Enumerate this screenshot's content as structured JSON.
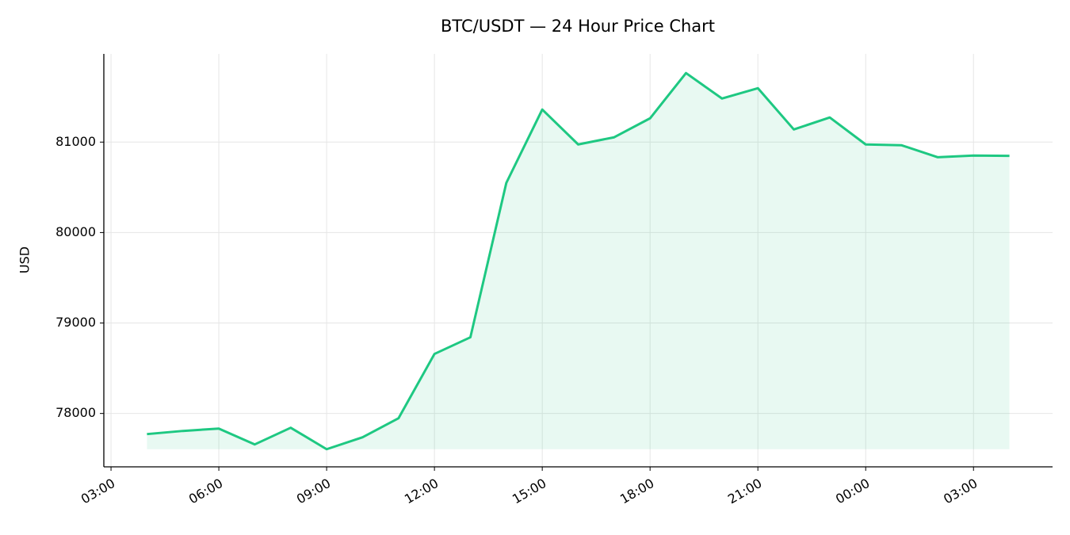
{
  "chart_data": {
    "type": "line",
    "title": "BTC/USDT — 24 Hour Price Chart",
    "y_label": "USD",
    "x": [
      4,
      5,
      6,
      7,
      8,
      9,
      10,
      11,
      12,
      13,
      14,
      15,
      16,
      17,
      18,
      19,
      20,
      21,
      22,
      23,
      24,
      25,
      26,
      27,
      28
    ],
    "values": [
      77772,
      77807,
      77833,
      77658,
      77842,
      77605,
      77737,
      77947,
      78658,
      78842,
      80549,
      81360,
      80974,
      81053,
      81263,
      81763,
      81482,
      81596,
      81140,
      81272,
      80974,
      80965,
      80833,
      80851,
      80848
    ],
    "color": "#1ec882",
    "xlim": [
      2.8,
      29.2
    ],
    "xticks": [
      {
        "value": 3,
        "label": "03:00"
      },
      {
        "value": 6,
        "label": "06:00"
      },
      {
        "value": 9,
        "label": "09:00"
      },
      {
        "value": 12,
        "label": "12:00"
      },
      {
        "value": 15,
        "label": "15:00"
      },
      {
        "value": 18,
        "label": "18:00"
      },
      {
        "value": 21,
        "label": "21:00"
      },
      {
        "value": 24,
        "label": "00:00"
      },
      {
        "value": 27,
        "label": "03:00"
      }
    ],
    "ylim": [
      77410,
      81975
    ],
    "yticks": [
      78000,
      79000,
      80000,
      81000
    ],
    "grid": true,
    "fill_area": true
  }
}
